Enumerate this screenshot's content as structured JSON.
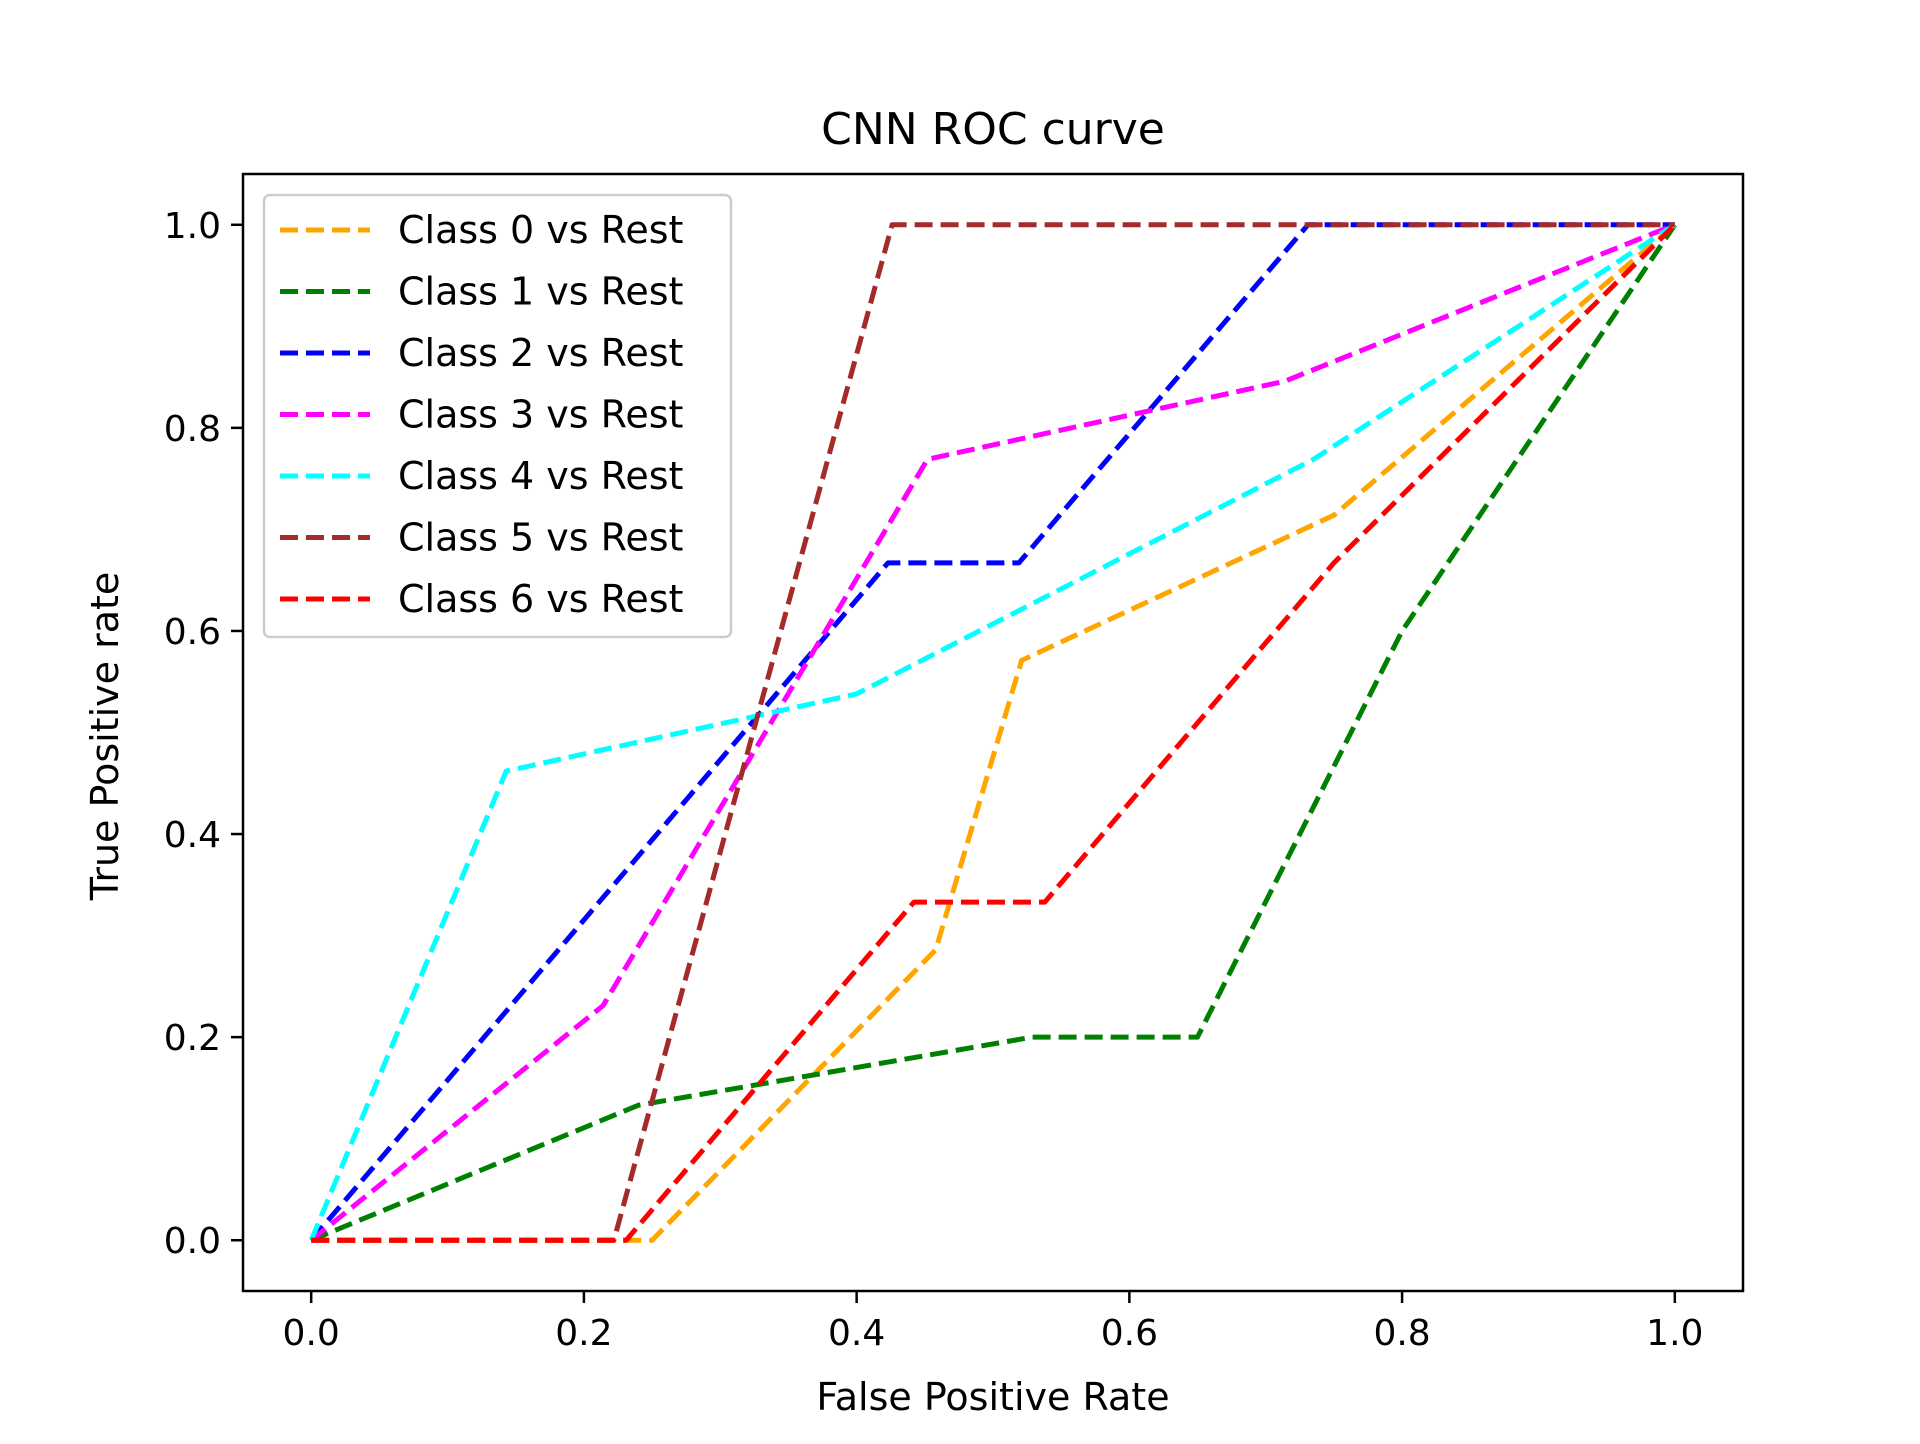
{
  "chart_data": {
    "type": "line",
    "title": "CNN ROC curve",
    "xlabel": "False Positive Rate",
    "ylabel": "True Positive rate",
    "xlim": [
      -0.05,
      1.05
    ],
    "ylim": [
      -0.05,
      1.05
    ],
    "xticks": [
      0.0,
      0.2,
      0.4,
      0.6,
      0.8,
      1.0
    ],
    "yticks": [
      0.0,
      0.2,
      0.4,
      0.6,
      0.8,
      1.0
    ],
    "xtick_labels": [
      "0.0",
      "0.2",
      "0.4",
      "0.6",
      "0.8",
      "1.0"
    ],
    "ytick_labels": [
      "0.0",
      "0.2",
      "0.4",
      "0.6",
      "0.8",
      "1.0"
    ],
    "grid": false,
    "legend_position": "upper-left",
    "series": [
      {
        "name": "Class 0 vs Rest",
        "color": "#ffa500",
        "x": [
          0.0,
          0.25,
          0.458,
          0.521,
          0.75,
          1.0
        ],
        "y": [
          0.0,
          0.0,
          0.286,
          0.571,
          0.714,
          1.0
        ]
      },
      {
        "name": "Class 1 vs Rest",
        "color": "#008000",
        "x": [
          0.0,
          0.24,
          0.529,
          0.65,
          0.8,
          1.0
        ],
        "y": [
          0.0,
          0.133,
          0.2,
          0.2,
          0.6,
          1.0
        ]
      },
      {
        "name": "Class 2 vs Rest",
        "color": "#0000ff",
        "x": [
          0.0,
          0.423,
          0.519,
          0.731,
          1.0
        ],
        "y": [
          0.0,
          0.667,
          0.667,
          1.0,
          1.0
        ]
      },
      {
        "name": "Class 3 vs Rest",
        "color": "#ff00ff",
        "x": [
          0.0,
          0.214,
          0.452,
          0.714,
          1.0
        ],
        "y": [
          0.0,
          0.231,
          0.769,
          0.846,
          1.0
        ]
      },
      {
        "name": "Class 4 vs Rest",
        "color": "#00ffff",
        "x": [
          0.0,
          0.143,
          0.4,
          0.735,
          1.0
        ],
        "y": [
          0.0,
          0.462,
          0.538,
          0.769,
          1.0
        ]
      },
      {
        "name": "Class 5 vs Rest",
        "color": "#a52a2a",
        "x": [
          0.0,
          0.222,
          0.426,
          1.0
        ],
        "y": [
          0.0,
          0.0,
          1.0,
          1.0
        ]
      },
      {
        "name": "Class 6 vs Rest",
        "color": "#ff0000",
        "x": [
          0.0,
          0.231,
          0.442,
          0.538,
          0.75,
          1.0
        ],
        "y": [
          0.0,
          0.0,
          0.333,
          0.333,
          0.667,
          1.0
        ]
      }
    ]
  }
}
